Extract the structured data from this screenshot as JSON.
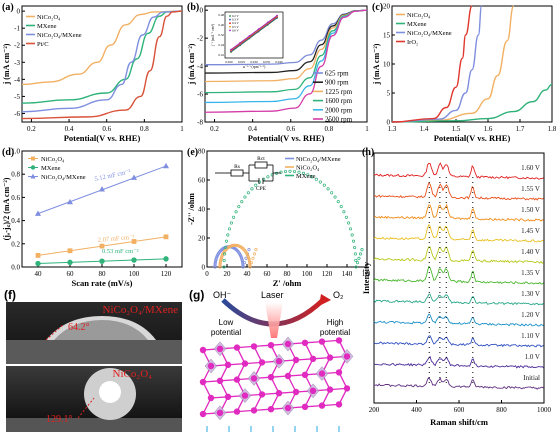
{
  "panels": {
    "a": {
      "letter": "(a)"
    },
    "b": {
      "letter": "(b)"
    },
    "c": {
      "letter": "(c)"
    },
    "d": {
      "letter": "(d)"
    },
    "e": {
      "letter": "(e)"
    },
    "f": {
      "letter": "(f)",
      "label_top": "NiCo₂O₄/MXene",
      "label_bottom": "NiCo₂O₄",
      "angle_top": "64.2°",
      "angle_bottom": "129.1°"
    },
    "g": {
      "letter": "(g)",
      "oh": "OH⁻",
      "o2": "O₂",
      "laser": "Laser",
      "low": "Low potential",
      "high": "High potential"
    },
    "h": {
      "letter": "(h)"
    }
  },
  "colors": {
    "nico2o4": "#f2b063",
    "mxene": "#2fb37a",
    "composite": "#7f8fe0",
    "ptc": "#d9523a",
    "iro2": "#e0382e",
    "red_label": "#e02020",
    "pink": "#e02ac0"
  },
  "chart_data": [
    {
      "id": "a",
      "type": "line",
      "xlabel": "Potential(V vs. RHE)",
      "ylabel": "j (mA cm⁻²)",
      "xlim": [
        0.15,
        1.0
      ],
      "ylim": [
        -6.5,
        0.3
      ],
      "xticks": [
        0.2,
        0.4,
        0.6,
        0.8,
        1.0
      ],
      "yticks": [
        0,
        -1,
        -2,
        -3,
        -4,
        -5,
        -6
      ],
      "series": [
        {
          "name": "NiCo₂O₄",
          "color": "#f2b063",
          "x": [
            0.15,
            0.3,
            0.45,
            0.55,
            0.62,
            0.7,
            0.78,
            0.85,
            1.0
          ],
          "y": [
            -4.3,
            -4.15,
            -3.7,
            -3.0,
            -2.0,
            -0.8,
            -0.2,
            -0.05,
            0
          ]
        },
        {
          "name": "MXene",
          "color": "#2fb37a",
          "x": [
            0.15,
            0.4,
            0.6,
            0.7,
            0.76,
            0.82,
            0.88,
            0.92,
            1.0
          ],
          "y": [
            -5.4,
            -5.2,
            -4.8,
            -4.0,
            -2.8,
            -1.3,
            -0.3,
            -0.05,
            0
          ]
        },
        {
          "name": "NiCo₂O₄/MXene",
          "color": "#7f8fe0",
          "x": [
            0.15,
            0.4,
            0.6,
            0.68,
            0.73,
            0.79,
            0.85,
            0.9,
            1.0
          ],
          "y": [
            -5.9,
            -5.7,
            -5.2,
            -4.3,
            -3.0,
            -1.4,
            -0.35,
            -0.05,
            0
          ]
        },
        {
          "name": "Pt/C",
          "color": "#d9523a",
          "x": [
            0.15,
            0.5,
            0.7,
            0.78,
            0.83,
            0.88,
            0.92,
            0.95,
            1.0
          ],
          "y": [
            -6.3,
            -6.2,
            -5.8,
            -5.0,
            -3.5,
            -1.5,
            -0.3,
            -0.05,
            0
          ]
        }
      ]
    },
    {
      "id": "b",
      "type": "line",
      "xlabel": "Potential(V vs. RHE)",
      "ylabel": "j (mA cm⁻²)",
      "xlim": [
        0.15,
        1.0
      ],
      "ylim": [
        -8,
        0.3
      ],
      "xticks": [
        0.2,
        0.4,
        0.6,
        0.8,
        1.0
      ],
      "yticks": [
        0,
        -2,
        -4,
        -6,
        -8
      ],
      "series": [
        {
          "name": "625 rpm",
          "color": "#7b8bd8",
          "plateau": -3.9
        },
        {
          "name": "900 rpm",
          "color": "#222222",
          "plateau": -4.5
        },
        {
          "name": "1225 rpm",
          "color": "#f2b063",
          "plateau": -5.1
        },
        {
          "name": "1600 rpm",
          "color": "#2fb37a",
          "plateau": -5.9
        },
        {
          "name": "2000 rpm",
          "color": "#38b4e8",
          "plateau": -6.6
        },
        {
          "name": "2500 rpm",
          "color": "#d43ca8",
          "plateau": -7.3
        }
      ],
      "inset": {
        "xlabel": "ω⁻¹ᐟ² (rpm⁻¹ᐟ²)",
        "ylabel": "j⁻¹ (mA⁻¹ cm²)",
        "xticks": [
          "0.020",
          "0.025",
          "0.030",
          "0.035",
          "0.040"
        ],
        "yticks": [
          "0.48",
          "0.40",
          "0.32",
          "0.24",
          "0.16"
        ],
        "legend": [
          "0.2 V",
          "0.3 V",
          "0.4 V",
          "0.5 V",
          "0.6 V"
        ]
      }
    },
    {
      "id": "c",
      "type": "line",
      "xlabel": "Potential(V vs. RHE)",
      "ylabel": "j (mA cm⁻²)",
      "xlim": [
        1.3,
        1.8
      ],
      "ylim": [
        0,
        20
      ],
      "xticks": [
        1.3,
        1.4,
        1.5,
        1.6,
        1.7,
        1.8
      ],
      "yticks": [
        0,
        5,
        10,
        15,
        20
      ],
      "series": [
        {
          "name": "NiCo₂O₄",
          "color": "#f2b063",
          "x": [
            1.3,
            1.45,
            1.55,
            1.6,
            1.63,
            1.66,
            1.68
          ],
          "y": [
            0,
            0.3,
            1.5,
            4,
            8,
            14,
            20
          ]
        },
        {
          "name": "MXene",
          "color": "#2fb37a",
          "x": [
            1.3,
            1.5,
            1.6,
            1.68,
            1.74,
            1.78,
            1.8
          ],
          "y": [
            0,
            0.2,
            0.6,
            1.8,
            3.5,
            5.5,
            6.5
          ]
        },
        {
          "name": "NiCo₂O₄/MXene",
          "color": "#7f8fe0",
          "x": [
            1.3,
            1.45,
            1.5,
            1.53,
            1.55,
            1.57,
            1.58
          ],
          "y": [
            0,
            0.5,
            2,
            5,
            9,
            15,
            20
          ]
        },
        {
          "name": "IrO₂",
          "color": "#e0382e",
          "x": [
            1.3,
            1.43,
            1.47,
            1.5,
            1.52,
            1.53,
            1.55
          ],
          "y": [
            0,
            0.6,
            2.5,
            6,
            11,
            15,
            20
          ]
        }
      ]
    },
    {
      "id": "d",
      "type": "scatter",
      "xlabel": "Scan rate (mV/s)",
      "ylabel": "(jₐ-j꜀)/2 (mA cm⁻²)",
      "xlim": [
        30,
        130
      ],
      "ylim": [
        0,
        1.0
      ],
      "xticks": [
        40,
        60,
        80,
        100,
        120
      ],
      "yticks": [
        0.0,
        0.2,
        0.4,
        0.6,
        0.8,
        1.0
      ],
      "annotations": [
        {
          "text": "5.12 mF cm⁻²",
          "color": "#7f8fe0"
        },
        {
          "text": "2.07 mF cm⁻²",
          "color": "#f2b063"
        },
        {
          "text": "0.53 mF cm⁻²",
          "color": "#2fb37a"
        }
      ],
      "series": [
        {
          "name": "NiCo₂O₄",
          "color": "#f2b063",
          "marker": "square",
          "x": [
            40,
            60,
            80,
            100,
            120
          ],
          "y": [
            0.1,
            0.14,
            0.18,
            0.22,
            0.26
          ]
        },
        {
          "name": "MXene",
          "color": "#2fb37a",
          "marker": "circle",
          "x": [
            40,
            60,
            80,
            100,
            120
          ],
          "y": [
            0.03,
            0.04,
            0.05,
            0.06,
            0.07
          ]
        },
        {
          "name": "NiCo₂O₄/MXene",
          "color": "#7f8fe0",
          "marker": "triangle",
          "x": [
            40,
            60,
            80,
            100,
            120
          ],
          "y": [
            0.46,
            0.56,
            0.67,
            0.77,
            0.87
          ]
        }
      ]
    },
    {
      "id": "e",
      "type": "scatter",
      "xlabel": "Z' /ohm",
      "ylabel": "-Z'' /ohm",
      "xlim": [
        0,
        160
      ],
      "ylim": [
        0,
        80
      ],
      "xticks": [
        0,
        20,
        40,
        60,
        80,
        100,
        120,
        140,
        160
      ],
      "yticks": [
        0,
        20,
        40,
        60,
        80
      ],
      "circuit": {
        "rs": "Rs",
        "rct": "Rct",
        "cpe": "CPE"
      },
      "series": [
        {
          "name": "NiCo₂O₄/MXene",
          "color": "#7f8fe0",
          "center": 22,
          "radius": 14
        },
        {
          "name": "NiCo₂O₄",
          "color": "#f2b063",
          "center": 28,
          "radius": 15
        },
        {
          "name": "MXene",
          "color": "#2fb37a",
          "center": 83,
          "radius": 66
        }
      ]
    },
    {
      "id": "h",
      "type": "line",
      "xlabel": "Raman shift/cm",
      "ylabel": "Intensity",
      "xlim": [
        200,
        1000
      ],
      "xticks": [
        200,
        400,
        600,
        800,
        1000
      ],
      "peaks": [
        460,
        510,
        540,
        665
      ],
      "series": [
        {
          "name": "1.60 V",
          "color": "#e02020"
        },
        {
          "name": "1.55 V",
          "color": "#e8501a"
        },
        {
          "name": "1.50 V",
          "color": "#f08c18"
        },
        {
          "name": "1.45 V",
          "color": "#e8c020"
        },
        {
          "name": "1.40 V",
          "color": "#b8c81c"
        },
        {
          "name": "1.35 V",
          "color": "#4cb830"
        },
        {
          "name": "1.30 V",
          "color": "#2aa88a"
        },
        {
          "name": "1.20 V",
          "color": "#1a90c8"
        },
        {
          "name": "1.10 V",
          "color": "#3050c0"
        },
        {
          "name": "1.0 V",
          "color": "#4a2a98"
        },
        {
          "name": "Initial",
          "color": "#603080"
        }
      ]
    }
  ]
}
